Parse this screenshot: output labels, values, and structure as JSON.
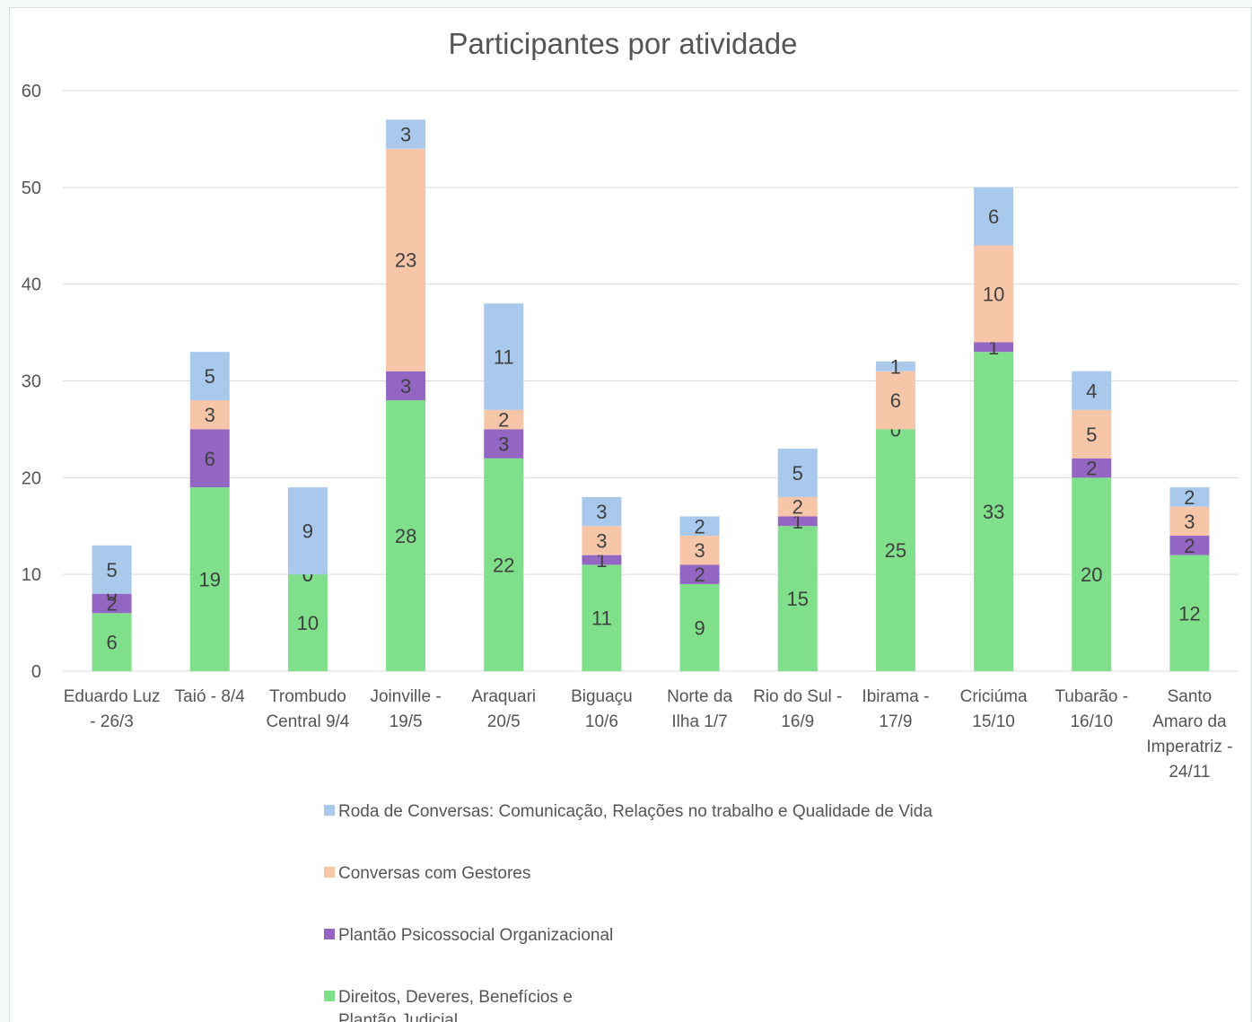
{
  "chart_data": {
    "type": "bar",
    "stacked": true,
    "title": "Participantes por atividade",
    "categories": [
      [
        "Eduardo Luz",
        "- 26/3"
      ],
      [
        "Taió - 8/4"
      ],
      [
        "Trombudo",
        "Central 9/4"
      ],
      [
        "Joinville -",
        "19/5"
      ],
      [
        "Araquari",
        "20/5"
      ],
      [
        "Biguaçu",
        "10/6"
      ],
      [
        "Norte da",
        "Ilha 1/7"
      ],
      [
        "Rio do Sul -",
        "16/9"
      ],
      [
        "Ibirama -",
        "17/9"
      ],
      [
        "Criciúma",
        "15/10"
      ],
      [
        "Tubarão -",
        "16/10"
      ],
      [
        "Santo",
        "Amaro da",
        "Imperatriz -",
        "24/11"
      ]
    ],
    "series": [
      {
        "name": "Direitos, Deveres, Benefícios e Plantão Judicial",
        "legend_lines": [
          "Direitos, Deveres, Benefícios e",
          "Plantão Judicial"
        ],
        "color": "#7fdf8a",
        "values": [
          6,
          19,
          10,
          28,
          22,
          11,
          9,
          15,
          25,
          33,
          20,
          12
        ]
      },
      {
        "name": "Plantão Psicossocial Organizacional",
        "legend_lines": [
          "Plantão Psicossocial Organizacional"
        ],
        "color": "#9466c4",
        "values": [
          2,
          6,
          0,
          3,
          3,
          1,
          2,
          1,
          0,
          1,
          2,
          2
        ]
      },
      {
        "name": "Conversas com Gestores",
        "legend_lines": [
          "Conversas com Gestores"
        ],
        "color": "#f7c6a8",
        "values": [
          0,
          3,
          0,
          23,
          2,
          3,
          3,
          2,
          6,
          10,
          5,
          3
        ]
      },
      {
        "name": "Roda de Conversas: Comunicação, Relações no trabalho e Qualidade de Vida",
        "legend_lines": [
          "Roda de Conversas: Comunicação, Relações no trabalho e Qualidade de Vida"
        ],
        "color": "#a9c9ec",
        "values": [
          5,
          5,
          9,
          3,
          11,
          3,
          2,
          5,
          1,
          6,
          4,
          2
        ]
      }
    ],
    "ylim": [
      0,
      60
    ],
    "yticks": [
      0,
      10,
      20,
      30,
      40,
      50,
      60
    ],
    "grid": true,
    "legend_position": "bottom",
    "legend_order": [
      3,
      2,
      1,
      0
    ]
  }
}
